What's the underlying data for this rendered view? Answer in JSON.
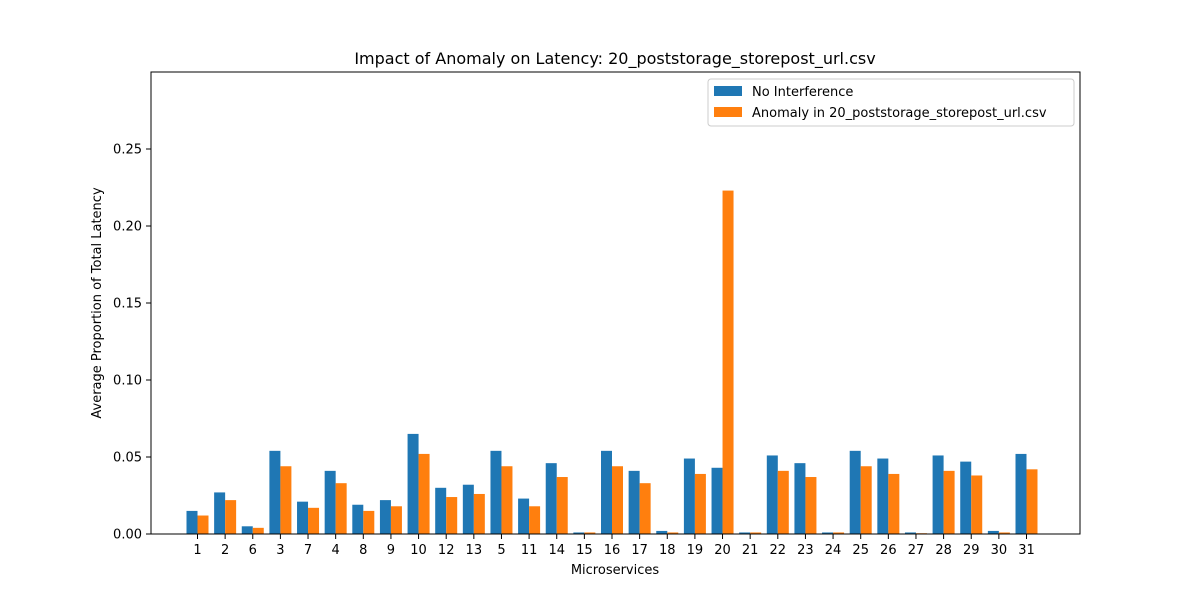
{
  "chart_data": {
    "type": "bar",
    "title": "Impact of Anomaly on Latency: 20_poststorage_storepost_url.csv",
    "xlabel": "Microservices",
    "ylabel": "Average Proportion of Total Latency",
    "ylim": [
      0,
      0.3
    ],
    "yticks": [
      "0.00",
      "0.05",
      "0.10",
      "0.15",
      "0.20",
      "0.25"
    ],
    "categories": [
      "1",
      "2",
      "6",
      "3",
      "7",
      "4",
      "8",
      "9",
      "10",
      "12",
      "13",
      "5",
      "11",
      "14",
      "15",
      "16",
      "17",
      "18",
      "19",
      "20",
      "21",
      "22",
      "23",
      "24",
      "25",
      "26",
      "27",
      "28",
      "29",
      "30",
      "31"
    ],
    "legend_position": "upper-right",
    "series": [
      {
        "name": "No Interference",
        "color": "#1f77b4",
        "values": [
          0.015,
          0.027,
          0.005,
          0.054,
          0.021,
          0.041,
          0.019,
          0.022,
          0.065,
          0.03,
          0.032,
          0.054,
          0.023,
          0.046,
          0.001,
          0.054,
          0.041,
          0.002,
          0.049,
          0.043,
          0.001,
          0.051,
          0.046,
          0.001,
          0.054,
          0.049,
          0.001,
          0.051,
          0.047,
          0.002,
          0.052
        ]
      },
      {
        "name": "Anomaly in 20_poststorage_storepost_url.csv",
        "color": "#ff7f0e",
        "values": [
          0.012,
          0.022,
          0.004,
          0.044,
          0.017,
          0.033,
          0.015,
          0.018,
          0.052,
          0.024,
          0.026,
          0.044,
          0.018,
          0.037,
          0.001,
          0.044,
          0.033,
          0.001,
          0.039,
          0.223,
          0.001,
          0.041,
          0.037,
          0.001,
          0.044,
          0.039,
          0.0005,
          0.041,
          0.038,
          0.001,
          0.042
        ]
      }
    ]
  }
}
